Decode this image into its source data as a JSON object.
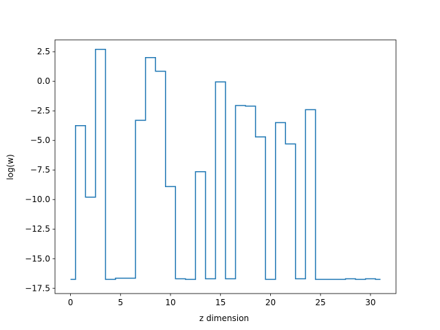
{
  "chart_data": {
    "type": "line",
    "drawstyle": "steps-mid",
    "title": "",
    "xlabel": "z dimension",
    "ylabel": "log(w)",
    "xlim": [
      -1.55,
      32.55
    ],
    "ylim": [
      -17.95,
      3.5
    ],
    "xticks": [
      0,
      5,
      10,
      15,
      20,
      25,
      30
    ],
    "yticks": [
      -17.5,
      -15.0,
      -12.5,
      -10.0,
      -7.5,
      -5.0,
      -2.5,
      0.0,
      2.5
    ],
    "ytick_labels": [
      "−17.5",
      "−15.0",
      "−12.5",
      "−10.0",
      "−7.5",
      "−5.0",
      "−2.5",
      "0.0",
      "2.5"
    ],
    "grid": false,
    "series": [
      {
        "color": "#1f77b4",
        "x": [
          0,
          1,
          2,
          3,
          4,
          5,
          6,
          7,
          8,
          9,
          10,
          11,
          12,
          13,
          14,
          15,
          16,
          17,
          18,
          19,
          20,
          21,
          22,
          23,
          24,
          25,
          26,
          27,
          28,
          29,
          30,
          31
        ],
        "values": [
          -16.75,
          -3.75,
          -9.8,
          2.7,
          -16.75,
          -16.65,
          -16.65,
          -3.3,
          2.0,
          0.85,
          -8.9,
          -16.7,
          -16.75,
          -7.65,
          -16.7,
          -0.05,
          -16.7,
          -2.05,
          -2.1,
          -4.7,
          -16.75,
          -3.5,
          -5.3,
          -16.7,
          -2.4,
          -16.75,
          -16.75,
          -16.75,
          -16.7,
          -16.75,
          -16.7,
          -16.75
        ]
      }
    ]
  }
}
